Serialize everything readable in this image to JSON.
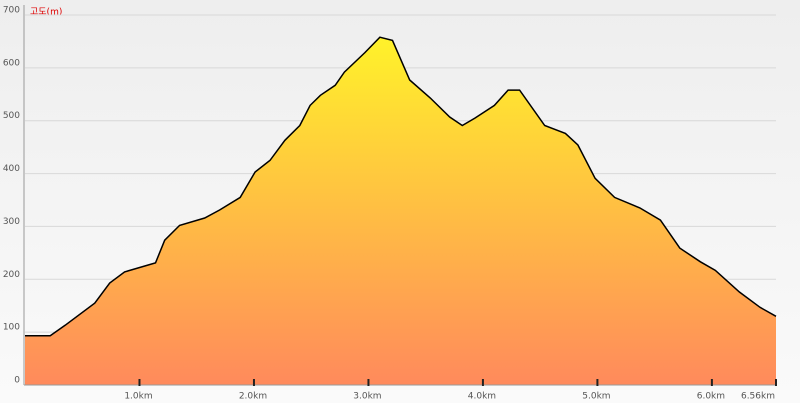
{
  "chart_data": {
    "type": "area",
    "y_label": "고도(m)",
    "x": [
      0,
      0.22,
      0.35,
      0.61,
      0.74,
      0.87,
      1.14,
      1.22,
      1.35,
      1.57,
      1.7,
      1.88,
      2.01,
      2.14,
      2.27,
      2.4,
      2.49,
      2.58,
      2.71,
      2.79,
      2.97,
      3.1,
      3.21,
      3.36,
      3.54,
      3.71,
      3.82,
      3.93,
      4.1,
      4.22,
      4.32,
      4.54,
      4.72,
      4.83,
      4.98,
      5.15,
      5.37,
      5.55,
      5.72,
      5.9,
      6.03,
      6.24,
      6.42,
      6.56
    ],
    "values": [
      93,
      93,
      113,
      155,
      193,
      214,
      231,
      274,
      302,
      316,
      331,
      355,
      403,
      425,
      463,
      491,
      529,
      548,
      567,
      592,
      629,
      658,
      652,
      577,
      543,
      507,
      491,
      505,
      529,
      558,
      558,
      491,
      476,
      454,
      391,
      355,
      335,
      312,
      259,
      233,
      217,
      176,
      147,
      130
    ],
    "fill_top": "#fff22a",
    "fill_bottom": "#ff8a5c",
    "line_color": "#000000",
    "xlim": [
      0,
      6.56
    ],
    "ylim": [
      0,
      700
    ],
    "xticks": [
      {
        "value": 1,
        "label": "1.0km"
      },
      {
        "value": 2,
        "label": "2.0km"
      },
      {
        "value": 3,
        "label": "3.0km"
      },
      {
        "value": 4,
        "label": "4.0km"
      },
      {
        "value": 5,
        "label": "5.0km"
      },
      {
        "value": 6,
        "label": "6.0km"
      },
      {
        "value": 6.56,
        "label": "6.56km"
      }
    ],
    "yticks": [
      0,
      100,
      200,
      300,
      400,
      500,
      600,
      700
    ],
    "grid": true
  }
}
